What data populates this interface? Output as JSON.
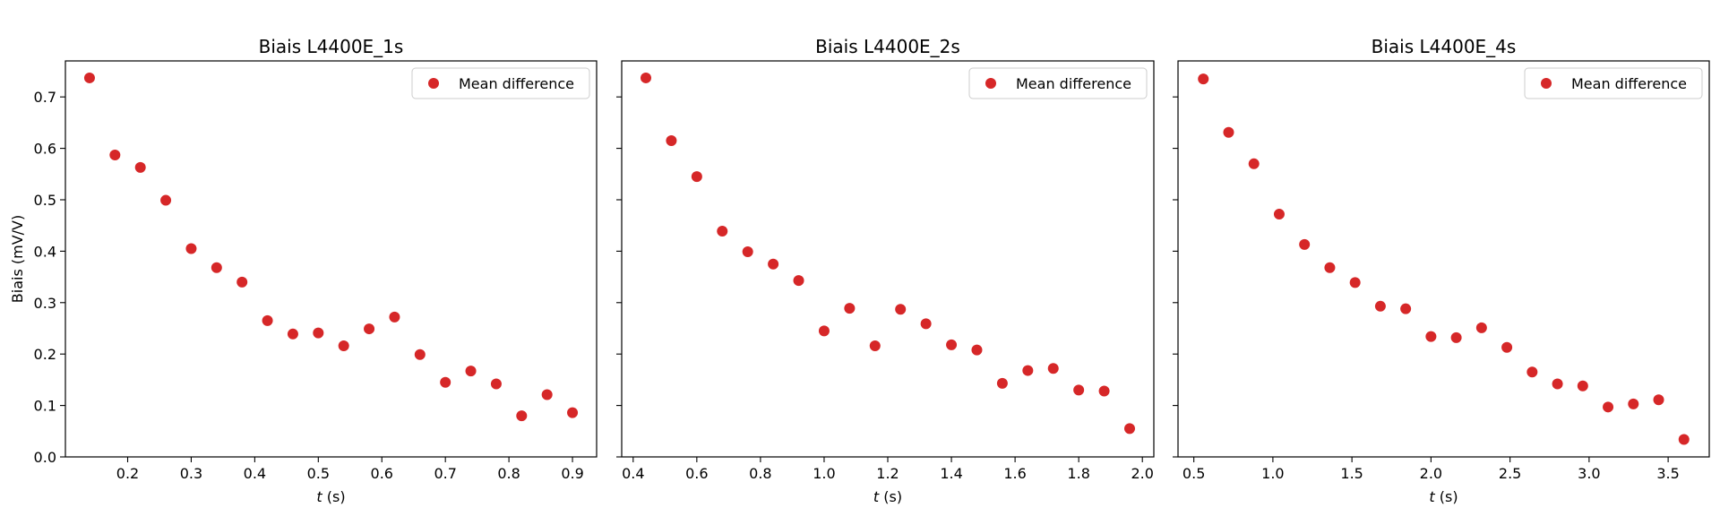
{
  "chart_data": [
    {
      "type": "scatter",
      "title": "Biais L4400E_1s",
      "xlabel_symbol": "t",
      "xlabel_unit": " (s)",
      "ylabel": "Biais (mV/V)",
      "xlim": [
        0.102,
        0.938
      ],
      "ylim": [
        0,
        0.77
      ],
      "xticks": [
        0.2,
        0.3,
        0.4,
        0.5,
        0.6,
        0.7,
        0.8,
        0.9
      ],
      "xtick_labels": [
        "0.2",
        "0.3",
        "0.4",
        "0.5",
        "0.6",
        "0.7",
        "0.8",
        "0.9"
      ],
      "yticks": [
        0.0,
        0.1,
        0.2,
        0.3,
        0.4,
        0.5,
        0.6,
        0.7
      ],
      "ytick_labels": [
        "0.0",
        "0.1",
        "0.2",
        "0.3",
        "0.4",
        "0.5",
        "0.6",
        "0.7"
      ],
      "show_ytick_labels": true,
      "grid": false,
      "legend": "top-right",
      "series": [
        {
          "name": "Mean difference",
          "color": "#d62728",
          "x": [
            0.14,
            0.18,
            0.22,
            0.26,
            0.3,
            0.34,
            0.38,
            0.42,
            0.46,
            0.5,
            0.54,
            0.58,
            0.62,
            0.66,
            0.7,
            0.74,
            0.78,
            0.82,
            0.86,
            0.9
          ],
          "y": [
            0.737,
            0.587,
            0.563,
            0.499,
            0.405,
            0.368,
            0.34,
            0.265,
            0.239,
            0.241,
            0.216,
            0.249,
            0.272,
            0.199,
            0.145,
            0.167,
            0.142,
            0.08,
            0.121,
            0.086
          ]
        }
      ]
    },
    {
      "type": "scatter",
      "title": "Biais L4400E_2s",
      "xlabel_symbol": "t",
      "xlabel_unit": " (s)",
      "ylabel": "",
      "xlim": [
        0.364,
        2.036
      ],
      "ylim": [
        0,
        0.77
      ],
      "xticks": [
        0.4,
        0.6,
        0.8,
        1.0,
        1.2,
        1.4,
        1.6,
        1.8,
        2.0
      ],
      "xtick_labels": [
        "0.4",
        "0.6",
        "0.8",
        "1.0",
        "1.2",
        "1.4",
        "1.6",
        "1.8",
        "2.0"
      ],
      "yticks": [
        0.0,
        0.1,
        0.2,
        0.3,
        0.4,
        0.5,
        0.6,
        0.7
      ],
      "ytick_labels": [
        "",
        "",
        "",
        "",
        "",
        "",
        "",
        ""
      ],
      "show_ytick_labels": false,
      "grid": false,
      "legend": "top-right",
      "series": [
        {
          "name": "Mean difference",
          "color": "#d62728",
          "x": [
            0.44,
            0.52,
            0.6,
            0.68,
            0.76,
            0.84,
            0.92,
            1.0,
            1.08,
            1.16,
            1.24,
            1.32,
            1.4,
            1.48,
            1.56,
            1.64,
            1.72,
            1.8,
            1.88,
            1.96
          ],
          "y": [
            0.737,
            0.615,
            0.545,
            0.439,
            0.399,
            0.375,
            0.343,
            0.245,
            0.289,
            0.216,
            0.287,
            0.259,
            0.218,
            0.208,
            0.143,
            0.168,
            0.172,
            0.13,
            0.128,
            0.055
          ]
        }
      ]
    },
    {
      "type": "scatter",
      "title": "Biais L4400E_4s",
      "xlabel_symbol": "t",
      "xlabel_unit": " (s)",
      "ylabel": "",
      "xlim": [
        0.4,
        3.76
      ],
      "ylim": [
        0,
        0.77
      ],
      "xticks": [
        0.5,
        1.0,
        1.5,
        2.0,
        2.5,
        3.0,
        3.5
      ],
      "xtick_labels": [
        "0.5",
        "1.0",
        "1.5",
        "2.0",
        "2.5",
        "3.0",
        "3.5"
      ],
      "yticks": [
        0.0,
        0.1,
        0.2,
        0.3,
        0.4,
        0.5,
        0.6,
        0.7
      ],
      "ytick_labels": [
        "",
        "",
        "",
        "",
        "",
        "",
        "",
        ""
      ],
      "show_ytick_labels": false,
      "grid": false,
      "legend": "top-right",
      "series": [
        {
          "name": "Mean difference",
          "color": "#d62728",
          "x": [
            0.56,
            0.72,
            0.88,
            1.04,
            1.2,
            1.36,
            1.52,
            1.68,
            1.84,
            2.0,
            2.16,
            2.32,
            2.48,
            2.64,
            2.8,
            2.96,
            3.12,
            3.28,
            3.44,
            3.6
          ],
          "y": [
            0.735,
            0.631,
            0.57,
            0.472,
            0.413,
            0.368,
            0.339,
            0.293,
            0.288,
            0.234,
            0.232,
            0.251,
            0.213,
            0.165,
            0.142,
            0.138,
            0.097,
            0.103,
            0.111,
            0.034
          ]
        }
      ]
    }
  ]
}
